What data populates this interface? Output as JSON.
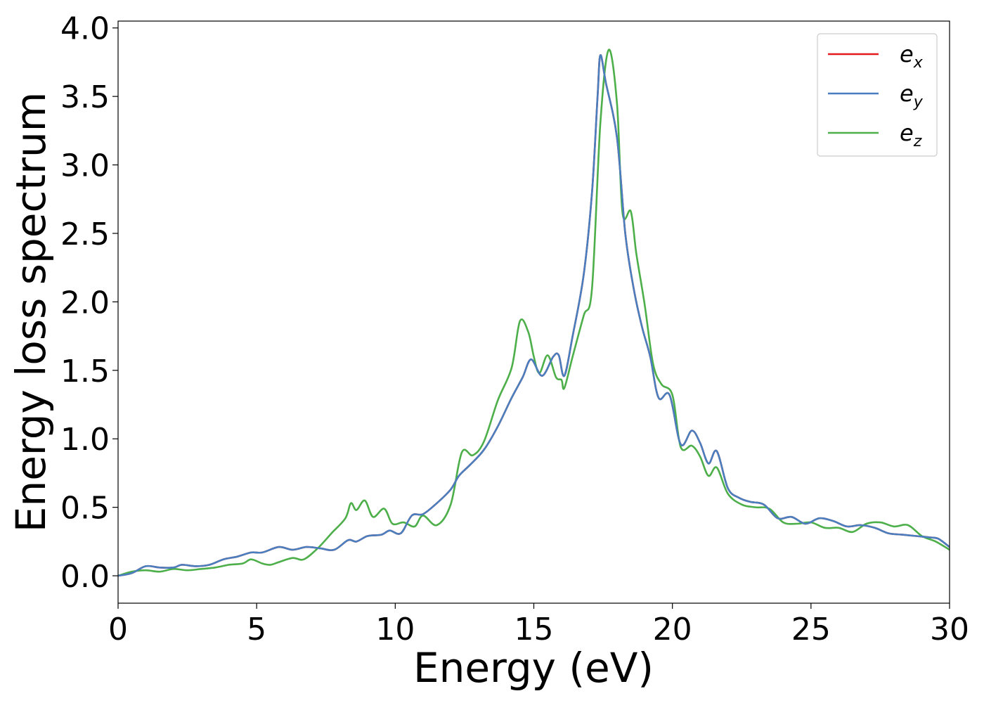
{
  "chart_data": {
    "type": "line",
    "title": "",
    "xlabel": "Energy (eV)",
    "ylabel": "Energy loss spectrum",
    "xlim": [
      0,
      30
    ],
    "ylim": [
      -0.2,
      4.05
    ],
    "xticks": [
      0,
      5,
      10,
      15,
      20,
      25,
      30
    ],
    "yticks": [
      0.0,
      0.5,
      1.0,
      1.5,
      2.0,
      2.5,
      3.0,
      3.5,
      4.0
    ],
    "xtick_labels": [
      "0",
      "5",
      "10",
      "15",
      "20",
      "25",
      "30"
    ],
    "ytick_labels": [
      "0.0",
      "0.5",
      "1.0",
      "1.5",
      "2.0",
      "2.5",
      "3.0",
      "3.5",
      "4.0"
    ],
    "grid": false,
    "legend_position": "top-right",
    "series": [
      {
        "name": "e_x",
        "label_base": "e",
        "label_sub": "x",
        "color": "#e41a1c",
        "x": [
          0,
          0.5,
          1,
          1.5,
          2,
          2.3,
          2.8,
          3.3,
          3.8,
          4.3,
          4.8,
          5.2,
          5.8,
          6.3,
          6.8,
          7.3,
          7.8,
          8.3,
          8.6,
          9,
          9.5,
          9.8,
          10.2,
          10.6,
          11,
          11.5,
          12,
          12.3,
          12.7,
          13.2,
          13.7,
          14.2,
          14.6,
          14.9,
          15.3,
          15.7,
          15.9,
          16.1,
          16.4,
          16.8,
          17.1,
          17.3,
          17.4,
          17.6,
          18,
          18.3,
          18.6,
          18.9,
          19.2,
          19.5,
          19.9,
          20.3,
          20.7,
          21,
          21.3,
          21.6,
          22,
          22.4,
          22.8,
          23.3,
          23.8,
          24.3,
          24.8,
          25.3,
          25.8,
          26.3,
          26.8,
          27.3,
          27.8,
          28.3,
          28.8,
          29.3,
          29.6,
          30
        ],
        "y": [
          0,
          0.02,
          0.07,
          0.06,
          0.06,
          0.08,
          0.07,
          0.08,
          0.12,
          0.14,
          0.17,
          0.17,
          0.21,
          0.19,
          0.21,
          0.2,
          0.19,
          0.26,
          0.25,
          0.29,
          0.3,
          0.33,
          0.31,
          0.44,
          0.45,
          0.53,
          0.63,
          0.73,
          0.81,
          0.92,
          1.09,
          1.3,
          1.45,
          1.58,
          1.46,
          1.6,
          1.61,
          1.46,
          1.75,
          2.2,
          2.8,
          3.5,
          3.8,
          3.6,
          3.2,
          2.5,
          2.1,
          1.82,
          1.6,
          1.3,
          1.32,
          0.96,
          1.06,
          0.97,
          0.82,
          0.91,
          0.64,
          0.57,
          0.54,
          0.52,
          0.42,
          0.43,
          0.38,
          0.42,
          0.4,
          0.36,
          0.37,
          0.35,
          0.31,
          0.3,
          0.29,
          0.28,
          0.27,
          0.21
        ]
      },
      {
        "name": "e_y",
        "label_base": "e",
        "label_sub": "y",
        "color": "#4a7fbf",
        "x": [
          0,
          0.5,
          1,
          1.5,
          2,
          2.3,
          2.8,
          3.3,
          3.8,
          4.3,
          4.8,
          5.2,
          5.8,
          6.3,
          6.8,
          7.3,
          7.8,
          8.3,
          8.6,
          9,
          9.5,
          9.8,
          10.2,
          10.6,
          11,
          11.5,
          12,
          12.3,
          12.7,
          13.2,
          13.7,
          14.2,
          14.6,
          14.9,
          15.3,
          15.7,
          15.9,
          16.1,
          16.4,
          16.8,
          17.1,
          17.3,
          17.4,
          17.6,
          18,
          18.3,
          18.6,
          18.9,
          19.2,
          19.5,
          19.9,
          20.3,
          20.7,
          21,
          21.3,
          21.6,
          22,
          22.4,
          22.8,
          23.3,
          23.8,
          24.3,
          24.8,
          25.3,
          25.8,
          26.3,
          26.8,
          27.3,
          27.8,
          28.3,
          28.8,
          29.3,
          29.6,
          30
        ],
        "y": [
          0,
          0.02,
          0.07,
          0.06,
          0.06,
          0.08,
          0.07,
          0.08,
          0.12,
          0.14,
          0.17,
          0.17,
          0.21,
          0.19,
          0.21,
          0.2,
          0.19,
          0.26,
          0.25,
          0.29,
          0.3,
          0.33,
          0.31,
          0.44,
          0.45,
          0.53,
          0.63,
          0.73,
          0.81,
          0.92,
          1.09,
          1.3,
          1.45,
          1.58,
          1.46,
          1.6,
          1.61,
          1.46,
          1.75,
          2.2,
          2.8,
          3.5,
          3.8,
          3.6,
          3.2,
          2.5,
          2.1,
          1.82,
          1.6,
          1.3,
          1.32,
          0.96,
          1.06,
          0.97,
          0.82,
          0.91,
          0.64,
          0.57,
          0.54,
          0.52,
          0.42,
          0.43,
          0.38,
          0.42,
          0.4,
          0.36,
          0.37,
          0.35,
          0.31,
          0.3,
          0.29,
          0.28,
          0.27,
          0.21
        ]
      },
      {
        "name": "e_z",
        "label_base": "e",
        "label_sub": "z",
        "color": "#4daf4a",
        "x": [
          0,
          0.5,
          1,
          1.5,
          2,
          2.5,
          3,
          3.5,
          4,
          4.5,
          4.8,
          5.2,
          5.5,
          5.8,
          6.3,
          6.7,
          7.2,
          7.7,
          8.2,
          8.4,
          8.6,
          8.9,
          9.2,
          9.6,
          9.9,
          10.3,
          10.7,
          11,
          11.5,
          12,
          12.4,
          12.8,
          13.2,
          13.7,
          14.2,
          14.5,
          14.8,
          15,
          15.2,
          15.5,
          15.8,
          16,
          16.1,
          16.4,
          16.8,
          17.1,
          17.4,
          17.7,
          18,
          18.2,
          18.5,
          18.7,
          19,
          19.3,
          19.6,
          20,
          20.3,
          20.7,
          21,
          21.3,
          21.6,
          22,
          22.5,
          23,
          23.5,
          24,
          24.5,
          25,
          25.5,
          26,
          26.5,
          27,
          27.5,
          28,
          28.5,
          29,
          29.5,
          30
        ],
        "y": [
          0,
          0.03,
          0.04,
          0.03,
          0.05,
          0.04,
          0.05,
          0.06,
          0.08,
          0.09,
          0.12,
          0.09,
          0.08,
          0.1,
          0.13,
          0.12,
          0.2,
          0.31,
          0.42,
          0.53,
          0.48,
          0.55,
          0.43,
          0.49,
          0.38,
          0.39,
          0.36,
          0.44,
          0.37,
          0.52,
          0.9,
          0.88,
          0.98,
          1.28,
          1.52,
          1.86,
          1.78,
          1.6,
          1.48,
          1.61,
          1.45,
          1.43,
          1.37,
          1.6,
          1.9,
          2.1,
          3.3,
          3.84,
          3.45,
          2.65,
          2.66,
          2.35,
          1.98,
          1.55,
          1.4,
          1.32,
          0.94,
          0.95,
          0.87,
          0.73,
          0.79,
          0.6,
          0.52,
          0.5,
          0.49,
          0.39,
          0.38,
          0.39,
          0.35,
          0.35,
          0.32,
          0.38,
          0.39,
          0.36,
          0.37,
          0.29,
          0.25,
          0.19
        ]
      }
    ]
  }
}
